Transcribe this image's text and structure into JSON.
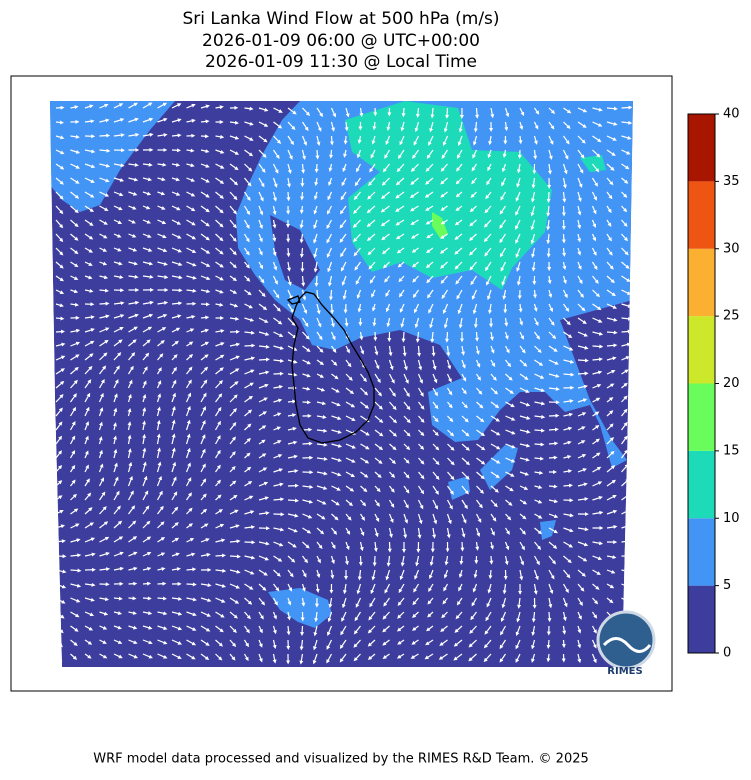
{
  "title": [
    "Sri Lanka Wind Flow at 500 hPa (m/s)",
    "2026-01-09 06:00 @ UTC+00:00",
    "2026-01-09 11:30 @ Local Time"
  ],
  "colorbar": {
    "lim": [
      0,
      40
    ],
    "ticks": [
      0,
      5,
      10,
      15,
      20,
      25,
      30,
      35,
      40
    ],
    "colors": [
      "#3d3d9e",
      "#4395f5",
      "#1ddbb8",
      "#6afc5a",
      "#cde82a",
      "#fbb032",
      "#ee5412",
      "#a91600"
    ]
  },
  "logo": "RIMES",
  "footer": "WRF model data processed and visualized by the RIMES R&D Team. © 2025"
}
